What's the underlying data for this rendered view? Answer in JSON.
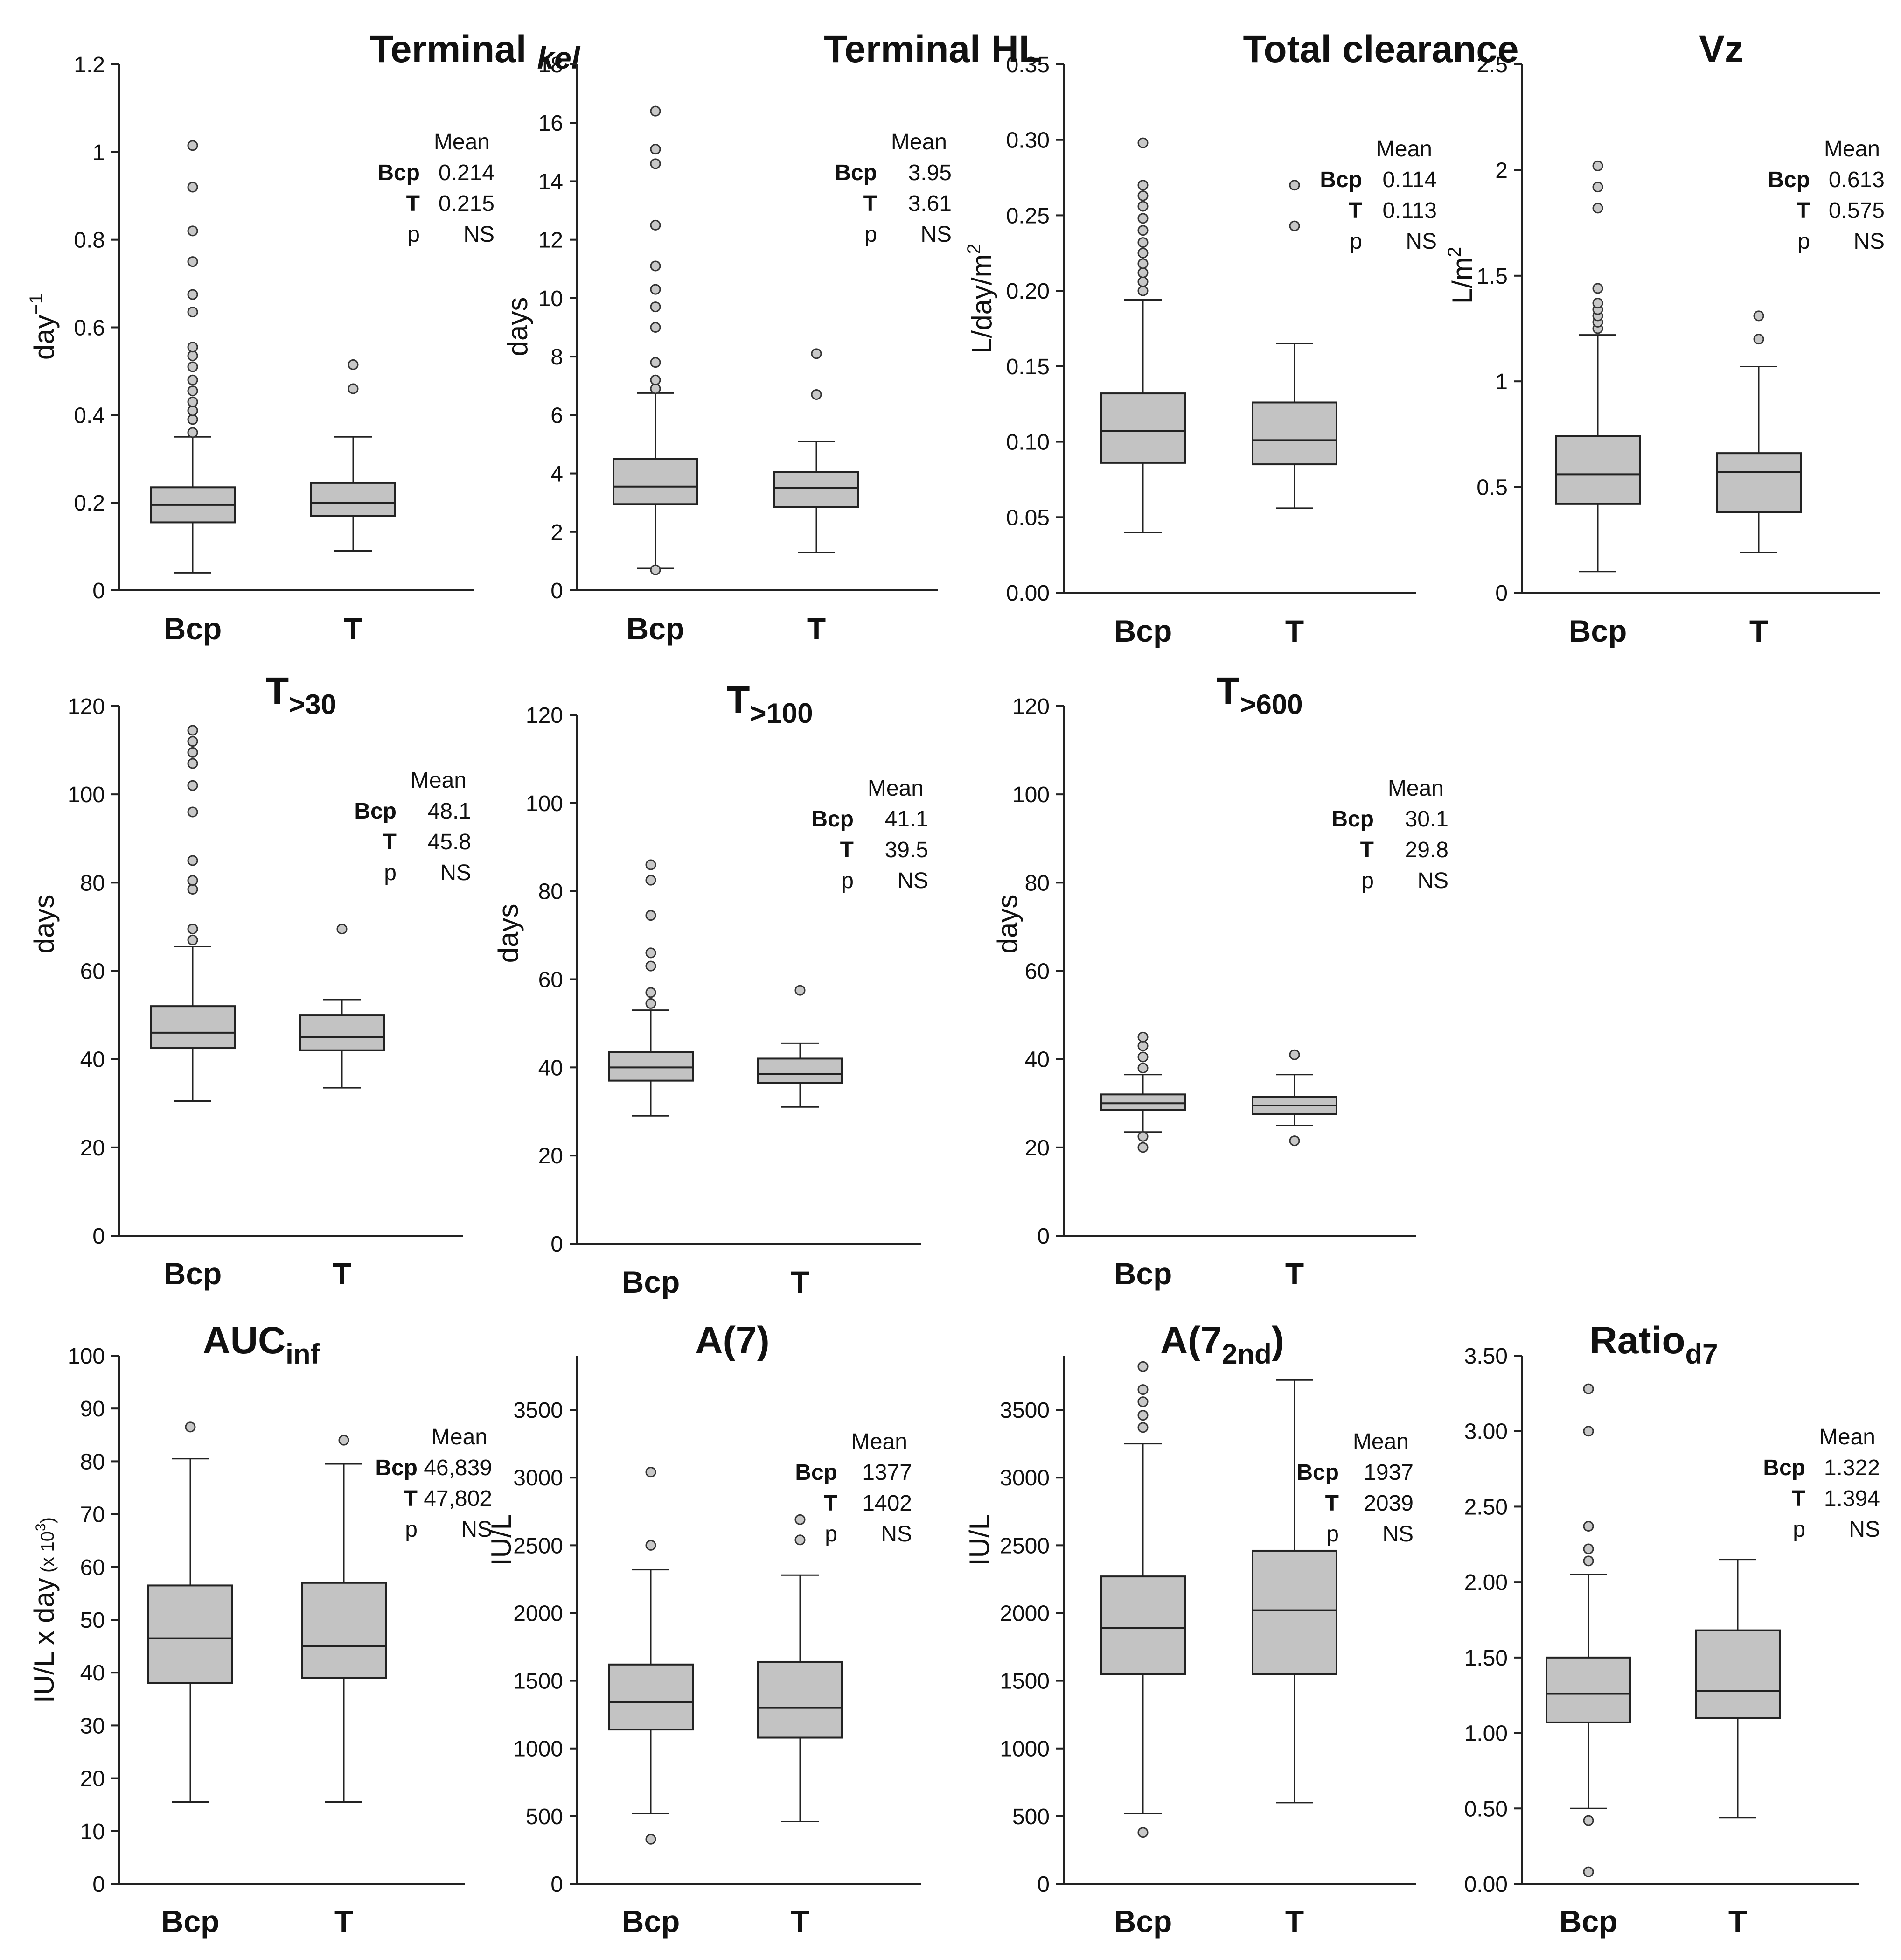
{
  "figure": {
    "stat_header": "Mean",
    "p_label": "p",
    "categories": [
      "Bcp",
      "T"
    ]
  },
  "chart_data": [
    {
      "type": "box",
      "title": "Terminal ",
      "title_sub": "kel",
      "title_sub_style": "italic-subscript",
      "ylabel": "day",
      "ylabel_sup": "−1",
      "ylim": [
        0,
        1.2
      ],
      "yticks": [
        "0",
        "0.2",
        "0.4",
        "0.6",
        "0.8",
        "1",
        "1.2"
      ],
      "yticks_values": [
        0,
        0.2,
        0.4,
        0.6,
        0.8,
        1.0,
        1.2
      ],
      "series": [
        {
          "name": "Bcp",
          "whisker_low": 0.04,
          "q1": 0.155,
          "median": 0.195,
          "q3": 0.235,
          "whisker_high": 0.35,
          "outliers": [
            0.36,
            0.39,
            0.41,
            0.43,
            0.455,
            0.48,
            0.51,
            0.535,
            0.555,
            0.635,
            0.675,
            0.75,
            0.82,
            0.92,
            1.015
          ]
        },
        {
          "name": "T",
          "whisker_low": 0.09,
          "q1": 0.17,
          "median": 0.2,
          "q3": 0.245,
          "whisker_high": 0.35,
          "outliers": [
            0.46,
            0.515
          ]
        }
      ],
      "stats": {
        "header": "Mean",
        "rows": [
          {
            "label": "Bcp",
            "value": "0.214"
          },
          {
            "label": "T",
            "value": "0.215"
          },
          {
            "label": "p",
            "value": "NS"
          }
        ]
      }
    },
    {
      "type": "box",
      "title": "Terminal HL",
      "ylabel": "days",
      "ylim": [
        0,
        18
      ],
      "yticks": [
        "0",
        "2",
        "4",
        "6",
        "8",
        "10",
        "12",
        "14",
        "16",
        "18"
      ],
      "yticks_values": [
        0,
        2,
        4,
        6,
        8,
        10,
        12,
        14,
        16,
        18
      ],
      "series": [
        {
          "name": "Bcp",
          "whisker_low": 0.75,
          "q1": 2.95,
          "median": 3.55,
          "q3": 4.5,
          "whisker_high": 6.75,
          "outliers": [
            0.7,
            6.9,
            7.2,
            7.8,
            9.0,
            9.7,
            10.3,
            11.1,
            12.5,
            14.6,
            15.1,
            16.4
          ]
        },
        {
          "name": "T",
          "whisker_low": 1.3,
          "q1": 2.85,
          "median": 3.5,
          "q3": 4.05,
          "whisker_high": 5.1,
          "outliers": [
            6.7,
            8.1
          ]
        }
      ],
      "stats": {
        "header": "Mean",
        "rows": [
          {
            "label": "Bcp",
            "value": "3.95"
          },
          {
            "label": "T",
            "value": "3.61"
          },
          {
            "label": "p",
            "value": "NS"
          }
        ]
      }
    },
    {
      "type": "box",
      "title": "Total clearance",
      "ylabel": "L/day/m",
      "ylabel_sup": "2",
      "ylim": [
        0,
        0.35
      ],
      "yticks": [
        "0.00",
        "0.05",
        "0.10",
        "0.15",
        "0.20",
        "0.25",
        "0.30",
        "0.35"
      ],
      "yticks_values": [
        0,
        0.05,
        0.1,
        0.15,
        0.2,
        0.25,
        0.3,
        0.35
      ],
      "series": [
        {
          "name": "Bcp",
          "whisker_low": 0.04,
          "q1": 0.086,
          "median": 0.107,
          "q3": 0.132,
          "whisker_high": 0.194,
          "outliers": [
            0.2,
            0.206,
            0.212,
            0.218,
            0.225,
            0.232,
            0.24,
            0.248,
            0.256,
            0.263,
            0.27,
            0.298
          ]
        },
        {
          "name": "T",
          "whisker_low": 0.056,
          "q1": 0.085,
          "median": 0.101,
          "q3": 0.126,
          "whisker_high": 0.165,
          "outliers": [
            0.243,
            0.27
          ]
        }
      ],
      "stats": {
        "header": "Mean",
        "rows": [
          {
            "label": "Bcp",
            "value": "0.114"
          },
          {
            "label": "T",
            "value": "0.113"
          },
          {
            "label": "p",
            "value": "NS"
          }
        ]
      }
    },
    {
      "type": "box",
      "title": "Vz",
      "ylabel": "L/m",
      "ylabel_sup": "2",
      "ylim": [
        0,
        2.5
      ],
      "yticks": [
        "0",
        "0.5",
        "1",
        "1.5",
        "2",
        "2.5"
      ],
      "yticks_values": [
        0,
        0.5,
        1,
        1.5,
        2,
        2.5
      ],
      "series": [
        {
          "name": "Bcp",
          "whisker_low": 0.1,
          "q1": 0.42,
          "median": 0.56,
          "q3": 0.74,
          "whisker_high": 1.22,
          "outliers": [
            1.25,
            1.28,
            1.31,
            1.34,
            1.37,
            1.44,
            1.82,
            1.92,
            2.02
          ]
        },
        {
          "name": "T",
          "whisker_low": 0.19,
          "q1": 0.38,
          "median": 0.57,
          "q3": 0.66,
          "whisker_high": 1.07,
          "outliers": [
            1.2,
            1.31
          ]
        }
      ],
      "stats": {
        "header": "Mean",
        "rows": [
          {
            "label": "Bcp",
            "value": "0.613"
          },
          {
            "label": "T",
            "value": "0.575"
          },
          {
            "label": "p",
            "value": "NS"
          }
        ]
      }
    },
    {
      "type": "box",
      "title": "T",
      "title_sub": ">30",
      "ylabel": "days",
      "ylim": [
        0,
        120
      ],
      "yticks": [
        "0",
        "20",
        "40",
        "60",
        "80",
        "100",
        "120"
      ],
      "yticks_values": [
        0,
        20,
        40,
        60,
        80,
        100,
        120
      ],
      "series": [
        {
          "name": "Bcp",
          "whisker_low": 30.5,
          "q1": 42.5,
          "median": 46,
          "q3": 52,
          "whisker_high": 65.5,
          "outliers": [
            67,
            69.5,
            78.5,
            80.5,
            85,
            96,
            102,
            107,
            109.5,
            112,
            114.5
          ]
        },
        {
          "name": "T",
          "whisker_low": 33.5,
          "q1": 42,
          "median": 45,
          "q3": 50,
          "whisker_high": 53.5,
          "outliers": [
            69.5
          ]
        }
      ],
      "stats": {
        "header": "Mean",
        "rows": [
          {
            "label": "Bcp",
            "value": "48.1"
          },
          {
            "label": "T",
            "value": "45.8"
          },
          {
            "label": "p",
            "value": "NS"
          }
        ]
      }
    },
    {
      "type": "box",
      "title": "T",
      "title_sub": ">100",
      "ylabel": "days",
      "ylim": [
        0,
        120
      ],
      "yticks": [
        "0",
        "20",
        "40",
        "60",
        "80",
        "100",
        "120"
      ],
      "yticks_values": [
        0,
        20,
        40,
        60,
        80,
        100,
        120
      ],
      "series": [
        {
          "name": "Bcp",
          "whisker_low": 29,
          "q1": 37,
          "median": 40,
          "q3": 43.5,
          "whisker_high": 53,
          "outliers": [
            54.5,
            57,
            63,
            66,
            74.5,
            82.5,
            86
          ]
        },
        {
          "name": "T",
          "whisker_low": 31,
          "q1": 36.5,
          "median": 38.5,
          "q3": 42,
          "whisker_high": 45.5,
          "outliers": [
            57.5
          ]
        }
      ],
      "stats": {
        "header": "Mean",
        "rows": [
          {
            "label": "Bcp",
            "value": "41.1"
          },
          {
            "label": "T",
            "value": "39.5"
          },
          {
            "label": "p",
            "value": "NS"
          }
        ]
      }
    },
    {
      "type": "box",
      "title": "T",
      "title_sub": ">600",
      "ylabel": "days",
      "ylim": [
        0,
        120
      ],
      "yticks": [
        "0",
        "20",
        "40",
        "60",
        "80",
        "100",
        "120"
      ],
      "yticks_values": [
        0,
        20,
        40,
        60,
        80,
        100,
        120
      ],
      "series": [
        {
          "name": "Bcp",
          "whisker_low": 23.5,
          "q1": 28.5,
          "median": 30,
          "q3": 32,
          "whisker_high": 36.5,
          "outliers": [
            20,
            22.5,
            38,
            40.5,
            43,
            45
          ]
        },
        {
          "name": "T",
          "whisker_low": 25,
          "q1": 27.5,
          "median": 29.5,
          "q3": 31.5,
          "whisker_high": 36.5,
          "outliers": [
            21.5,
            41
          ]
        }
      ],
      "stats": {
        "header": "Mean",
        "rows": [
          {
            "label": "Bcp",
            "value": "30.1"
          },
          {
            "label": "T",
            "value": "29.8"
          },
          {
            "label": "p",
            "value": "NS"
          }
        ]
      }
    },
    {
      "type": "box",
      "title": "AUC",
      "title_sub": "inf",
      "ylabel": "IU/L x day",
      "ylabel_small": " (x 10",
      "ylabel_small_sup": "3",
      "ylabel_small_end": ")",
      "ylim": [
        0,
        100
      ],
      "yticks": [
        "0",
        "10",
        "20",
        "30",
        "40",
        "50",
        "60",
        "70",
        "80",
        "90",
        "100"
      ],
      "yticks_values": [
        0,
        10,
        20,
        30,
        40,
        50,
        60,
        70,
        80,
        90,
        100
      ],
      "series": [
        {
          "name": "Bcp",
          "whisker_low": 15.5,
          "q1": 38,
          "median": 46.5,
          "q3": 56.5,
          "whisker_high": 80.5,
          "outliers": [
            86.5
          ]
        },
        {
          "name": "T",
          "whisker_low": 15.5,
          "q1": 39,
          "median": 45,
          "q3": 57,
          "whisker_high": 79.5,
          "outliers": [
            84
          ]
        }
      ],
      "stats": {
        "header": "Mean",
        "rows": [
          {
            "label": "Bcp",
            "value": "46,839"
          },
          {
            "label": "T",
            "value": "47,802"
          },
          {
            "label": "p",
            "value": "NS"
          }
        ]
      }
    },
    {
      "type": "box",
      "title": "A(7)",
      "ylabel": "IU/L",
      "ylim": [
        0,
        3900
      ],
      "yticks": [
        "0",
        "500",
        "1000",
        "1500",
        "2000",
        "2500",
        "3000",
        "3500"
      ],
      "yticks_values": [
        0,
        500,
        1000,
        1500,
        2000,
        2500,
        3000,
        3500
      ],
      "series": [
        {
          "name": "Bcp",
          "whisker_low": 520,
          "q1": 1140,
          "median": 1340,
          "q3": 1620,
          "whisker_high": 2320,
          "outliers": [
            330,
            2500,
            3040
          ]
        },
        {
          "name": "T",
          "whisker_low": 460,
          "q1": 1080,
          "median": 1300,
          "q3": 1640,
          "whisker_high": 2280,
          "outliers": [
            2540,
            2690
          ]
        }
      ],
      "stats": {
        "header": "Mean",
        "rows": [
          {
            "label": "Bcp",
            "value": "1377"
          },
          {
            "label": "T",
            "value": "1402"
          },
          {
            "label": "p",
            "value": "NS"
          }
        ]
      }
    },
    {
      "type": "box",
      "title": "A(7",
      "title_sub": "2nd",
      "title_end": ")",
      "ylabel": "IU/L",
      "ylim": [
        0,
        3900
      ],
      "yticks": [
        "0",
        "500",
        "1000",
        "1500",
        "2000",
        "2500",
        "3000",
        "3500"
      ],
      "yticks_values": [
        0,
        500,
        1000,
        1500,
        2000,
        2500,
        3000,
        3500
      ],
      "series": [
        {
          "name": "Bcp",
          "whisker_low": 520,
          "q1": 1550,
          "median": 1890,
          "q3": 2270,
          "whisker_high": 3250,
          "outliers": [
            380,
            3370,
            3460,
            3560,
            3650,
            3820
          ]
        },
        {
          "name": "T",
          "whisker_low": 600,
          "q1": 1550,
          "median": 2020,
          "q3": 2460,
          "whisker_high": 3720,
          "outliers": []
        }
      ],
      "stats": {
        "header": "Mean",
        "rows": [
          {
            "label": "Bcp",
            "value": "1937"
          },
          {
            "label": "T",
            "value": "2039"
          },
          {
            "label": "p",
            "value": "NS"
          }
        ]
      }
    },
    {
      "type": "box",
      "title": "Ratio",
      "title_sub": "d7",
      "ylabel": "",
      "ylim": [
        0,
        3.5
      ],
      "yticks": [
        "0.00",
        "0.50",
        "1.00",
        "1.50",
        "2.00",
        "2.50",
        "3.00",
        "3.50"
      ],
      "yticks_values": [
        0,
        0.5,
        1,
        1.5,
        2,
        2.5,
        3,
        3.5
      ],
      "series": [
        {
          "name": "Bcp",
          "whisker_low": 0.5,
          "q1": 1.07,
          "median": 1.26,
          "q3": 1.5,
          "whisker_high": 2.05,
          "outliers": [
            0.08,
            0.42,
            2.14,
            2.22,
            2.37,
            3.0,
            3.28
          ]
        },
        {
          "name": "T",
          "whisker_low": 0.44,
          "q1": 1.1,
          "median": 1.28,
          "q3": 1.68,
          "whisker_high": 2.15,
          "outliers": []
        }
      ],
      "stats": {
        "header": "Mean",
        "rows": [
          {
            "label": "Bcp",
            "value": "1.322"
          },
          {
            "label": "T",
            "value": "1.394"
          },
          {
            "label": "p",
            "value": "NS"
          }
        ]
      }
    }
  ]
}
